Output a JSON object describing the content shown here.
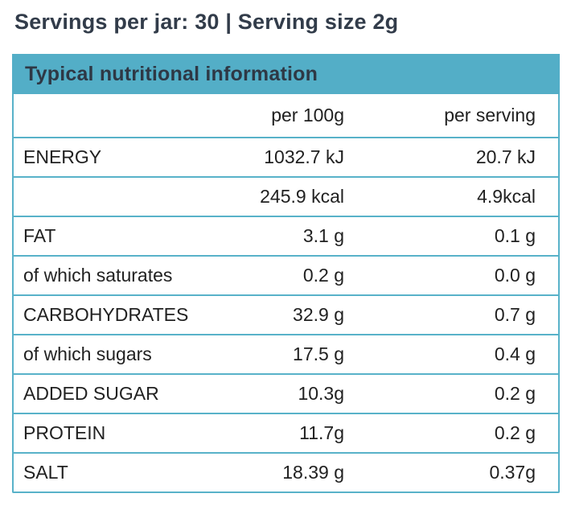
{
  "page_title": "Servings per jar: 30 | Serving size 2g",
  "colors": {
    "accent_teal": "#53aec7",
    "table_border": "#58b2c9",
    "heading_text": "#323c4a",
    "body_text": "#212121"
  },
  "table": {
    "title": "Typical nutritional information",
    "columns": {
      "label": "",
      "per_100g": "per 100g",
      "per_serving": "per serving"
    },
    "rows": [
      {
        "label": "ENERGY",
        "per_100g": "1032.7 kJ",
        "per_serving": "20.7 kJ"
      },
      {
        "label": "",
        "per_100g": "245.9 kcal",
        "per_serving": "4.9kcal"
      },
      {
        "label": "FAT",
        "per_100g": "3.1 g",
        "per_serving": "0.1 g"
      },
      {
        "label": "of which saturates",
        "per_100g": "0.2 g",
        "per_serving": "0.0 g"
      },
      {
        "label": "CARBOHYDRATES",
        "per_100g": "32.9 g",
        "per_serving": "0.7 g"
      },
      {
        "label": "of which sugars",
        "per_100g": "17.5 g",
        "per_serving": "0.4 g"
      },
      {
        "label": "ADDED SUGAR",
        "per_100g": "10.3g",
        "per_serving": "0.2 g"
      },
      {
        "label": "PROTEIN",
        "per_100g": "11.7g",
        "per_serving": "0.2 g"
      },
      {
        "label": "SALT",
        "per_100g": "18.39 g",
        "per_serving": "0.37g"
      }
    ]
  }
}
